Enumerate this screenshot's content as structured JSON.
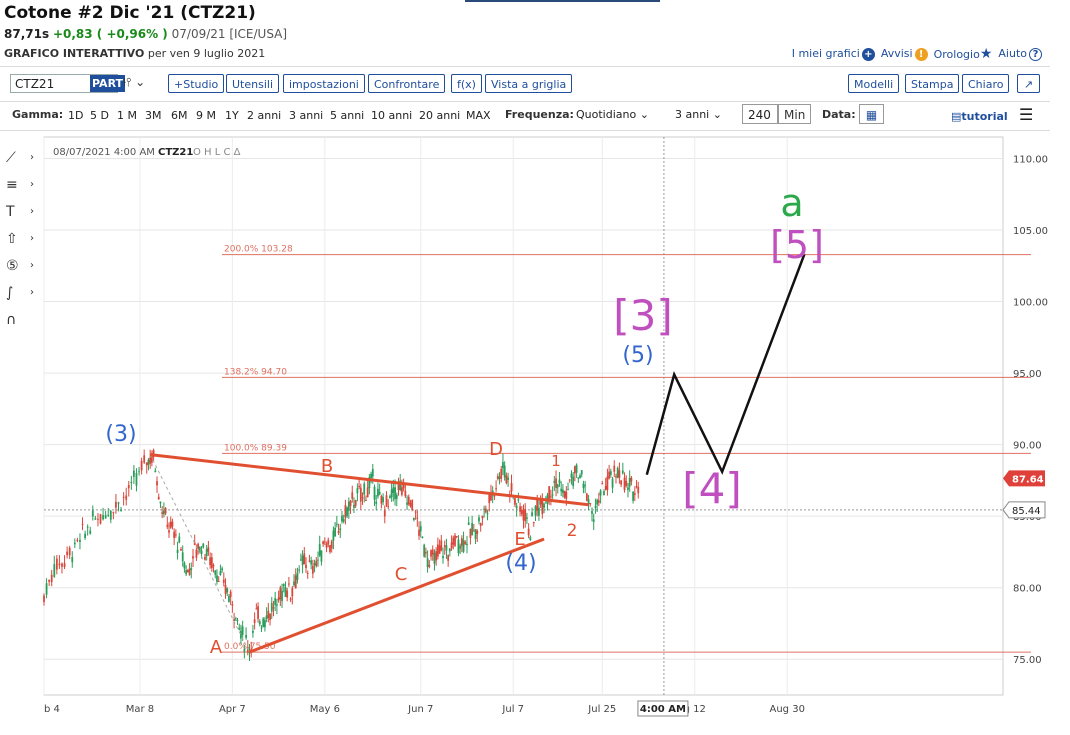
{
  "header": {
    "title": "Cotone #2 Dic '21 (CTZ21)",
    "price": "87,71s",
    "change": "+0,83 ( +0,96% )",
    "date_exchange": "07/09/21 [ICE/USA]",
    "chart_label": "GRAFICO INTERATTIVO",
    "chart_date": "per ven 9 luglio 2021"
  },
  "links": {
    "my_charts": "I miei grafici",
    "alerts": "Avvisi",
    "clock": "Orologio",
    "help": "Aiuto"
  },
  "toolbar": {
    "symbol": "CTZ21",
    "part": "PART",
    "studio": "+Studio",
    "utensili": "Utensili",
    "impostazioni": "impostazioni",
    "confrontare": "Confrontare",
    "fx": "f(x)",
    "grid": "Vista a griglia",
    "modelli": "Modelli",
    "stampa": "Stampa",
    "chiaro": "Chiaro"
  },
  "range_bar": {
    "gamma_label": "Gamma:",
    "ranges": [
      "1D",
      "5 D",
      "1 M",
      "3M",
      "6M",
      "9 M",
      "1Y",
      "2 anni",
      "3 anni",
      "5 anni",
      "10 anni",
      "20 anni",
      "MAX"
    ],
    "freq_label": "Frequenza:",
    "freq_value": "Quotidiano",
    "period_value": "3 anni",
    "bars_value": "240",
    "min_label": "Min",
    "data_label": "Data:",
    "tutorial": "tutorial"
  },
  "chart_info": {
    "datetime": "08/07/2021 4:00 AM",
    "symbol": "CTZ21",
    "ohlc": "O H L C Δ"
  },
  "chart_data": {
    "type": "line",
    "x_ticks": [
      "b 4",
      "Mar 8",
      "Apr 7",
      "May 6",
      "Jun 7",
      "Jul 7",
      "Jul 25",
      "g 12",
      "Aug 30"
    ],
    "y_ticks": [
      "110.00",
      "105.00",
      "100.00",
      "95.00",
      "90.00",
      "85.00",
      "80.00",
      "75.00"
    ],
    "ylim": [
      72.5,
      111.5
    ],
    "last_price_label": "87.64",
    "crosshair_price_label": "85.44",
    "crosshair_time_label": "4:00 AM",
    "fib_levels": [
      {
        "label": "200.0% 103.28",
        "value": 103.28
      },
      {
        "label": "138.2% 94.70",
        "value": 94.7
      },
      {
        "label": "100.0% 89.39",
        "value": 89.39
      },
      {
        "label": "0.0% 75.50",
        "value": 75.5
      }
    ],
    "price_path": [
      [
        0,
        79.4
      ],
      [
        3,
        81.5
      ],
      [
        6,
        82.0
      ],
      [
        9,
        82.8
      ],
      [
        12,
        83.9
      ],
      [
        15,
        84.8
      ],
      [
        18,
        85.3
      ],
      [
        21,
        85.8
      ],
      [
        24,
        86.5
      ],
      [
        27,
        87.6
      ],
      [
        30,
        89.0
      ],
      [
        32,
        89.2
      ],
      [
        34,
        86.0
      ],
      [
        36,
        84.5
      ],
      [
        38,
        83.8
      ],
      [
        40,
        82.5
      ],
      [
        42,
        81.0
      ],
      [
        44,
        82.6
      ],
      [
        46,
        83.0
      ],
      [
        48,
        82.3
      ],
      [
        50,
        81.3
      ],
      [
        52,
        80.5
      ],
      [
        54,
        79.5
      ],
      [
        56,
        78.2
      ],
      [
        58,
        76.5
      ],
      [
        60,
        75.8
      ],
      [
        62,
        78.0
      ],
      [
        64,
        77.8
      ],
      [
        66,
        78.4
      ],
      [
        68,
        78.8
      ],
      [
        70,
        80.1
      ],
      [
        72,
        79.8
      ],
      [
        74,
        81.0
      ],
      [
        76,
        81.8
      ],
      [
        78,
        81.3
      ],
      [
        80,
        82.0
      ],
      [
        82,
        83.3
      ],
      [
        84,
        83.0
      ],
      [
        86,
        84.2
      ],
      [
        88,
        85.2
      ],
      [
        90,
        86.0
      ],
      [
        92,
        86.4
      ],
      [
        94,
        86.8
      ],
      [
        96,
        87.4
      ],
      [
        98,
        86.0
      ],
      [
        100,
        85.8
      ],
      [
        102,
        86.6
      ],
      [
        104,
        87.0
      ],
      [
        106,
        86.3
      ],
      [
        108,
        85.4
      ],
      [
        110,
        83.7
      ],
      [
        112,
        82.1
      ],
      [
        114,
        81.9
      ],
      [
        116,
        82.8
      ],
      [
        118,
        82.4
      ],
      [
        120,
        83.4
      ],
      [
        122,
        83.2
      ],
      [
        124,
        83.7
      ],
      [
        126,
        84.1
      ],
      [
        128,
        84.9
      ],
      [
        130,
        86.0
      ],
      [
        132,
        87.4
      ],
      [
        134,
        88.5
      ],
      [
        136,
        87.2
      ],
      [
        138,
        85.8
      ],
      [
        140,
        85.4
      ],
      [
        142,
        84.0
      ],
      [
        144,
        85.6
      ],
      [
        146,
        86.2
      ],
      [
        148,
        87.0
      ],
      [
        150,
        87.4
      ],
      [
        152,
        86.3
      ],
      [
        154,
        87.6
      ],
      [
        156,
        88.0
      ],
      [
        158,
        87.0
      ],
      [
        160,
        85.0
      ],
      [
        162,
        86.0
      ],
      [
        164,
        87.2
      ],
      [
        166,
        87.6
      ],
      [
        168,
        88.2
      ],
      [
        170,
        87.0
      ],
      [
        172,
        86.8
      ],
      [
        174,
        87.6
      ]
    ],
    "x_axis_max": 280,
    "wave_labels": [
      {
        "text": "(3)",
        "color": "#3366cc"
      },
      {
        "text": "A",
        "color": "#e05030"
      },
      {
        "text": "B",
        "color": "#e05030"
      },
      {
        "text": "C",
        "color": "#e05030"
      },
      {
        "text": "D",
        "color": "#e05030"
      },
      {
        "text": "E",
        "color": "#e05030"
      },
      {
        "text": "(4)",
        "color": "#3366cc"
      },
      {
        "text": "1",
        "color": "#e05030"
      },
      {
        "text": "2",
        "color": "#e05030"
      },
      {
        "text": "(5)",
        "color": "#3366cc"
      },
      {
        "text": "[3]",
        "color": "#c050c0"
      },
      {
        "text": "[4]",
        "color": "#c050c0"
      },
      {
        "text": "[5]",
        "color": "#c050c0"
      },
      {
        "text": "a",
        "color": "#2aa84a"
      }
    ],
    "projection_path": [
      [
        176,
        87.9
      ],
      [
        184,
        94.9
      ],
      [
        198,
        88.1
      ],
      [
        222,
        103.3
      ]
    ],
    "colors": {
      "up": "#2a9d5a",
      "down": "#d9463a",
      "annotation_line": "#e05030",
      "fib_line": "#e07060",
      "projection": "#111111"
    }
  }
}
